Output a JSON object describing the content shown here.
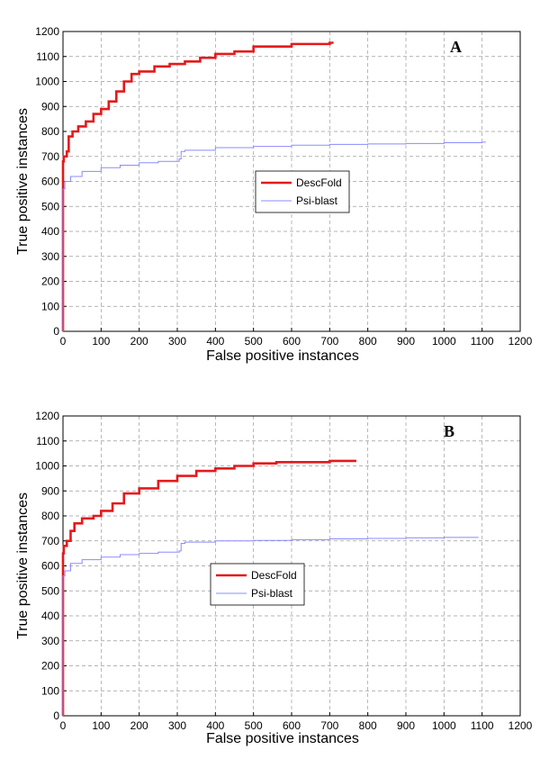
{
  "chart_data": [
    {
      "type": "line",
      "panel": "A",
      "xlabel": "False positive instances",
      "ylabel": "True positive instances",
      "xlim": [
        0,
        1200
      ],
      "ylim": [
        0,
        1200
      ],
      "xticks": [
        0,
        100,
        200,
        300,
        400,
        500,
        600,
        700,
        800,
        900,
        1000,
        1100,
        1200
      ],
      "yticks": [
        0,
        100,
        200,
        300,
        400,
        500,
        600,
        700,
        800,
        900,
        1000,
        1100,
        1200
      ],
      "grid": true,
      "legend": "center",
      "series": [
        {
          "name": "DescFold",
          "color": "#e31a1c",
          "x": [
            0,
            0,
            2,
            10,
            15,
            25,
            40,
            60,
            80,
            100,
            120,
            140,
            160,
            180,
            200,
            240,
            280,
            320,
            360,
            400,
            450,
            500,
            600,
            700,
            710
          ],
          "y": [
            0,
            680,
            700,
            720,
            780,
            800,
            820,
            840,
            870,
            890,
            920,
            960,
            1000,
            1030,
            1040,
            1060,
            1070,
            1080,
            1095,
            1110,
            1120,
            1140,
            1150,
            1155,
            1155
          ]
        },
        {
          "name": "Psi-blast",
          "color": "#8b8bff",
          "x": [
            0,
            0,
            5,
            20,
            50,
            100,
            150,
            200,
            250,
            305,
            310,
            320,
            400,
            500,
            600,
            700,
            800,
            900,
            1000,
            1100,
            1110
          ],
          "y": [
            0,
            570,
            600,
            620,
            640,
            655,
            665,
            675,
            680,
            690,
            720,
            725,
            735,
            740,
            745,
            748,
            750,
            752,
            755,
            757,
            757
          ]
        }
      ]
    },
    {
      "type": "line",
      "panel": "B",
      "xlabel": "False positive instances",
      "ylabel": "True positive instances",
      "xlim": [
        0,
        1200
      ],
      "ylim": [
        0,
        1200
      ],
      "xticks": [
        0,
        100,
        200,
        300,
        400,
        500,
        600,
        700,
        800,
        900,
        1000,
        1100,
        1200
      ],
      "yticks": [
        0,
        100,
        200,
        300,
        400,
        500,
        600,
        700,
        800,
        900,
        1000,
        1100,
        1200
      ],
      "grid": true,
      "legend": "center",
      "series": [
        {
          "name": "DescFold",
          "color": "#e31a1c",
          "x": [
            0,
            0,
            2,
            10,
            20,
            30,
            50,
            80,
            100,
            130,
            160,
            200,
            250,
            300,
            350,
            400,
            450,
            500,
            560,
            600,
            700,
            770
          ],
          "y": [
            0,
            650,
            680,
            700,
            740,
            770,
            790,
            800,
            820,
            850,
            890,
            910,
            940,
            960,
            980,
            990,
            1000,
            1010,
            1015,
            1015,
            1020,
            1020
          ]
        },
        {
          "name": "Psi-blast",
          "color": "#8b8bff",
          "x": [
            0,
            0,
            5,
            20,
            50,
            100,
            150,
            200,
            250,
            305,
            310,
            320,
            400,
            500,
            600,
            700,
            800,
            900,
            1000,
            1090
          ],
          "y": [
            0,
            560,
            580,
            610,
            625,
            635,
            645,
            650,
            655,
            660,
            690,
            695,
            700,
            702,
            705,
            708,
            710,
            712,
            714,
            715
          ]
        }
      ]
    }
  ]
}
